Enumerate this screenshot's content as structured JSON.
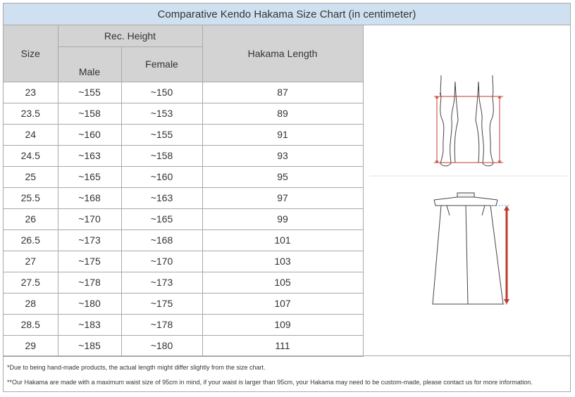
{
  "title": "Comparative Kendo Hakama Size Chart (in centimeter)",
  "headers": {
    "size": "Size",
    "rec_height": "Rec. Height",
    "male": "Male",
    "female": "Female",
    "hakama_length": "Hakama Length"
  },
  "rows": [
    {
      "size": "23",
      "male": "~155",
      "female": "~150",
      "length": "87"
    },
    {
      "size": "23.5",
      "male": "~158",
      "female": "~153",
      "length": "89"
    },
    {
      "size": "24",
      "male": "~160",
      "female": "~155",
      "length": "91"
    },
    {
      "size": "24.5",
      "male": "~163",
      "female": "~158",
      "length": "93"
    },
    {
      "size": "25",
      "male": "~165",
      "female": "~160",
      "length": "95"
    },
    {
      "size": "25.5",
      "male": "~168",
      "female": "~163",
      "length": "97"
    },
    {
      "size": "26",
      "male": "~170",
      "female": "~165",
      "length": "99"
    },
    {
      "size": "26.5",
      "male": "~173",
      "female": "~168",
      "length": "101"
    },
    {
      "size": "27",
      "male": "~175",
      "female": "~170",
      "length": "103"
    },
    {
      "size": "27.5",
      "male": "~178",
      "female": "~173",
      "length": "105"
    },
    {
      "size": "28",
      "male": "~180",
      "female": "~175",
      "length": "107"
    },
    {
      "size": "28.5",
      "male": "~183",
      "female": "~178",
      "length": "109"
    },
    {
      "size": "29",
      "male": "~185",
      "female": "~180",
      "length": "111"
    }
  ],
  "notes": {
    "note1": "*Due to being hand-made products, the actual length might differ slightly from the size chart.",
    "note2": "**Our Hakama are made with a maximum waist size of 95cm in mind, if your waist is larger than 95cm, your Hakama may need to be custom-made, please contact us for more information."
  },
  "colors": {
    "title_bg": "#cfe1f0",
    "header_bg": "#d3d3d3",
    "border": "#a9a9a9",
    "measure_red": "#c0392b",
    "measure_blue": "#5aa9e6"
  },
  "icons": {
    "legs": "legs-measurement-icon",
    "hakama": "hakama-measurement-icon"
  }
}
